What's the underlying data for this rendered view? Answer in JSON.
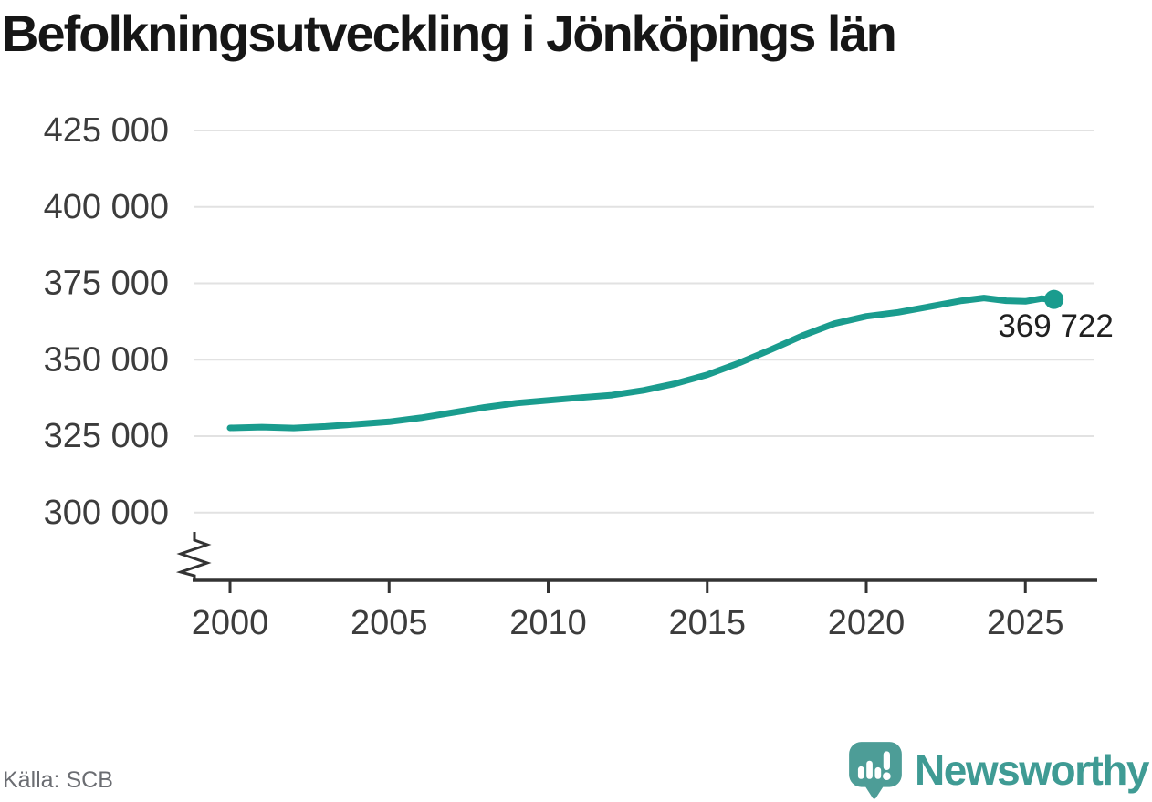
{
  "title": "Befolkningsutveckling i Jönköpings län",
  "source": "Källa: SCB",
  "brand": {
    "name": "Newsworthy",
    "icon": "newsworthy-speech-bubble-bar-chart-icon",
    "icon_color": "#4D9D97",
    "wordmark_color": "#3F9B94"
  },
  "colors": {
    "line": "#1A9C8E",
    "grid": "#E2E2E2",
    "axis": "#333333",
    "tick_text": "#3C3C3C",
    "title_text": "#161616",
    "source_text": "#6B6D72",
    "annotation_text": "#202020"
  },
  "chart_data": {
    "type": "line",
    "title": "Befolkningsutveckling i Jönköpings län",
    "xlabel": "",
    "ylabel": "",
    "grid": "horizontal",
    "legend": "none",
    "y_axis_break": true,
    "xlim": [
      1998.8,
      2027.3
    ],
    "ylim": [
      293000,
      431000
    ],
    "x_ticks": [
      2000,
      2005,
      2010,
      2015,
      2020,
      2025
    ],
    "y_ticks": [
      {
        "value": 425000,
        "label": "425 000"
      },
      {
        "value": 400000,
        "label": "400 000"
      },
      {
        "value": 375000,
        "label": "375 000"
      },
      {
        "value": 350000,
        "label": "350 000"
      },
      {
        "value": 325000,
        "label": "325 000"
      },
      {
        "value": 300000,
        "label": "300 000"
      }
    ],
    "points": [
      [
        2000,
        327700
      ],
      [
        2001,
        327950
      ],
      [
        2002,
        327650
      ],
      [
        2003,
        328150
      ],
      [
        2004,
        328900
      ],
      [
        2005,
        329700
      ],
      [
        2006,
        331000
      ],
      [
        2007,
        332700
      ],
      [
        2008,
        334400
      ],
      [
        2009,
        335800
      ],
      [
        2010,
        336700
      ],
      [
        2011,
        337600
      ],
      [
        2012,
        338400
      ],
      [
        2013,
        340000
      ],
      [
        2014,
        342200
      ],
      [
        2015,
        345100
      ],
      [
        2016,
        348900
      ],
      [
        2017,
        353300
      ],
      [
        2018,
        357900
      ],
      [
        2019,
        361800
      ],
      [
        2020,
        364200
      ],
      [
        2021,
        365500
      ],
      [
        2022,
        367400
      ],
      [
        2023,
        369300
      ],
      [
        2023.7,
        370200
      ],
      [
        2024.4,
        369300
      ],
      [
        2025,
        369100
      ],
      [
        2025.5,
        370000
      ],
      [
        2025.9,
        369722
      ]
    ],
    "last_point": {
      "x": 2025.9,
      "value": 369722,
      "label": "369 722"
    }
  }
}
